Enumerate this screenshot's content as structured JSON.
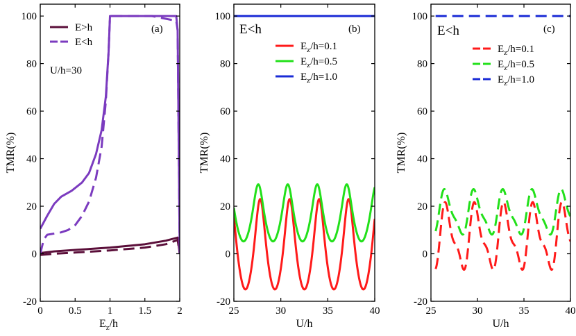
{
  "chart_data": [
    {
      "id": "a",
      "type": "line",
      "panel_label": "(a)",
      "annotation": "U/h=30",
      "xlabel_main": "E",
      "xlabel_sub": "z",
      "xlabel_rest": "/h",
      "ylabel": "TMR(%)",
      "xlim": [
        0,
        2
      ],
      "ylim": [
        -20,
        105
      ],
      "xticks": [
        0,
        0.5,
        1,
        1.5,
        2
      ],
      "xtick_labels": [
        "0",
        "0.5",
        "1",
        "1.5",
        "2"
      ],
      "yticks": [
        -20,
        0,
        20,
        40,
        60,
        80,
        100
      ],
      "ytick_labels": [
        "-20",
        "0",
        "20",
        "40",
        "60",
        "80",
        "100"
      ],
      "legend": [
        {
          "main": "E>h",
          "color": "#5b0f3a"
        },
        {
          "main": "E<h",
          "color": "#7b3bbf"
        }
      ],
      "series": [
        {
          "name": "E>h solid",
          "color": "#5b0f3a",
          "dash": "solid",
          "x": [
            0,
            0.2,
            0.5,
            1.0,
            1.5,
            1.8,
            1.97,
            2.0
          ],
          "y": [
            0.3,
            1.0,
            1.6,
            2.6,
            4.0,
            5.5,
            6.8,
            0
          ]
        },
        {
          "name": "E>h dashed",
          "color": "#5b0f3a",
          "dash": "dashed",
          "x": [
            0,
            0.2,
            0.5,
            1.0,
            1.5,
            1.8,
            1.97,
            2.0
          ],
          "y": [
            -0.5,
            0,
            0.5,
            1.4,
            2.6,
            4.0,
            5.8,
            0
          ]
        },
        {
          "name": "E<h solid",
          "color": "#7b3bbf",
          "dash": "solid",
          "x": [
            0,
            0.1,
            0.2,
            0.3,
            0.45,
            0.6,
            0.7,
            0.8,
            0.88,
            0.94,
            0.98,
            1.0,
            1.6,
            1.95,
            1.97,
            2.0
          ],
          "y": [
            10.5,
            16,
            21,
            24,
            26.5,
            30,
            34,
            42,
            52,
            66,
            85,
            100,
            100,
            100,
            94,
            0
          ]
        },
        {
          "name": "E<h dashed",
          "color": "#7b3bbf",
          "dash": "dashed",
          "x": [
            0,
            0.05,
            0.1,
            0.2,
            0.3,
            0.4,
            0.5,
            0.6,
            0.7,
            0.8,
            0.88,
            0.94,
            0.98,
            1.0,
            1.6,
            1.95,
            1.97,
            2.0
          ],
          "y": [
            0,
            6,
            8,
            8.5,
            9,
            10,
            12,
            16,
            22,
            32,
            45,
            64,
            85,
            100,
            100,
            98,
            94,
            0
          ]
        }
      ]
    },
    {
      "id": "b",
      "type": "line",
      "panel_label": "(b)",
      "annotation": "E<h",
      "xlabel": "U/h",
      "ylabel": "TMR(%)",
      "xlim": [
        25,
        40
      ],
      "ylim": [
        -20,
        105
      ],
      "xticks": [
        25,
        30,
        35,
        40
      ],
      "xtick_labels": [
        "25",
        "30",
        "35",
        "40"
      ],
      "yticks": [
        -20,
        0,
        20,
        40,
        60,
        80,
        100
      ],
      "ytick_labels": [
        "-20",
        "0",
        "20",
        "40",
        "60",
        "80",
        "100"
      ],
      "legend": [
        {
          "main": "E",
          "sub": "z",
          "rest": "/h=0.1",
          "color": "#ff1a1a"
        },
        {
          "main": "E",
          "sub": "z",
          "rest": "/h=0.5",
          "color": "#22e01a"
        },
        {
          "main": "E",
          "sub": "z",
          "rest": "/h=1.0",
          "color": "#1a2bd6"
        }
      ],
      "series": [
        {
          "name": "Ez/h=0.1",
          "color": "#ff1a1a",
          "dash": "solid",
          "model": "oscillation",
          "mean": 4,
          "amplitude": 19,
          "period": 3.14,
          "peak_at": 27.8,
          "x_range": [
            25,
            40
          ]
        },
        {
          "name": "Ez/h=0.5",
          "color": "#22e01a",
          "dash": "solid",
          "model": "oscillation",
          "mean": 17.2,
          "amplitude": 12,
          "period": 3.14,
          "peak_at": 27.6,
          "x_range": [
            25,
            40
          ]
        },
        {
          "name": "Ez/h=1.0",
          "color": "#1a2bd6",
          "dash": "solid",
          "model": "constant",
          "value": 100,
          "x_range": [
            25,
            40
          ]
        }
      ]
    },
    {
      "id": "c",
      "type": "line",
      "panel_label": "(c)",
      "annotation": "E<h",
      "xlabel": "U/h",
      "ylabel": "TMR(%)",
      "xlim": [
        25,
        40
      ],
      "ylim": [
        -20,
        105
      ],
      "xticks": [
        25,
        30,
        35,
        40
      ],
      "xtick_labels": [
        "25",
        "30",
        "35",
        "40"
      ],
      "yticks": [
        -20,
        0,
        20,
        40,
        60,
        80,
        100
      ],
      "ytick_labels": [
        "-20",
        "0",
        "20",
        "40",
        "60",
        "80",
        "100"
      ],
      "legend": [
        {
          "main": "E",
          "sub": "z",
          "rest": "/h=0.1",
          "color": "#ff1a1a"
        },
        {
          "main": "E",
          "sub": "z",
          "rest": "/h=0.5",
          "color": "#22e01a"
        },
        {
          "main": "E",
          "sub": "z",
          "rest": "/h=1.0",
          "color": "#1a2bd6"
        }
      ],
      "series": [
        {
          "name": "Ez/h=0.1",
          "color": "#ff1a1a",
          "dash": "dashed",
          "model": "double-oscillation",
          "mean": 6.5,
          "amplitude": 12,
          "amplitude2": 4.5,
          "period": 3.14,
          "peak_at": 26.7,
          "x_range": [
            25.5,
            40
          ]
        },
        {
          "name": "Ez/h=0.5",
          "color": "#22e01a",
          "dash": "dashed",
          "model": "double-oscillation",
          "mean": 17,
          "amplitude": 8.5,
          "amplitude2": 2.5,
          "period": 3.14,
          "peak_at": 26.6,
          "x_range": [
            25.5,
            40
          ]
        },
        {
          "name": "Ez/h=1.0",
          "color": "#1a2bd6",
          "dash": "dashed",
          "model": "constant",
          "value": 100,
          "x_range": [
            25.5,
            40
          ]
        }
      ]
    }
  ]
}
